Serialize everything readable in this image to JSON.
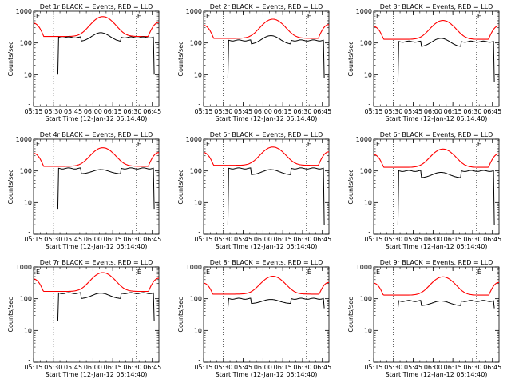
{
  "colors": {
    "events": "#000000",
    "lld": "#ff0000",
    "axis": "#000000",
    "background": "#ffffff"
  },
  "shared": {
    "xlabel": "Start Time (12-Jan-12 05:14:40)",
    "ylabel": "Counts/sec",
    "x_tick_labels": [
      "05:15",
      "05:30",
      "05:45",
      "06:00",
      "06:15",
      "06:30",
      "06:45"
    ],
    "y_tick_labels": [
      "1",
      "10",
      "100",
      "1000"
    ],
    "marker_left": "E",
    "marker_right": "E"
  },
  "chart_data": [
    {
      "type": "line",
      "title": "Det 1r BLACK = Events, RED = LLD",
      "x": [],
      "series": [
        {
          "values": []
        },
        {
          "values": []
        }
      ],
      "ylim": [
        1,
        1000
      ],
      "yscale": "log",
      "events_level": 150,
      "events_dip": 110,
      "events_hump": 210,
      "events_end": 10,
      "lld_base": 160,
      "lld_peak": 540,
      "lld_edges": 420,
      "events_start": 5.55,
      "events_stop": 6.78,
      "step_left": 5.85,
      "step_right": 6.35
    },
    {
      "type": "line",
      "title": "Det 2r BLACK = Events, RED = LLD",
      "x": [],
      "series": [
        {
          "values": []
        },
        {
          "values": []
        }
      ],
      "ylim": [
        1,
        1000
      ],
      "yscale": "log",
      "events_level": 120,
      "events_dip": 90,
      "events_hump": 170,
      "events_end": 8,
      "lld_base": 140,
      "lld_peak": 440,
      "lld_edges": 360,
      "events_start": 5.55,
      "events_stop": 6.78,
      "step_left": 5.85,
      "step_right": 6.35
    },
    {
      "type": "line",
      "title": "Det 3r BLACK = Events, RED = LLD",
      "x": [],
      "series": [
        {
          "values": []
        },
        {
          "values": []
        }
      ],
      "ylim": [
        1,
        1000
      ],
      "yscale": "log",
      "events_level": 110,
      "events_dip": 75,
      "events_hump": 140,
      "events_end": 6,
      "lld_base": 130,
      "lld_peak": 400,
      "lld_edges": 330,
      "events_start": 5.55,
      "events_stop": 6.78,
      "step_left": 5.85,
      "step_right": 6.35
    },
    {
      "type": "line",
      "title": "Det 4r BLACK = Events, RED = LLD",
      "x": [],
      "series": [
        {
          "values": []
        },
        {
          "values": []
        }
      ],
      "ylim": [
        1,
        1000
      ],
      "yscale": "log",
      "events_level": 120,
      "events_dip": 80,
      "events_hump": 110,
      "events_end": 6,
      "lld_base": 140,
      "lld_peak": 420,
      "lld_edges": 360,
      "events_start": 5.55,
      "events_stop": 6.78,
      "step_left": 5.85,
      "step_right": 6.35
    },
    {
      "type": "line",
      "title": "Det 5r BLACK = Events, RED = LLD",
      "x": [],
      "series": [
        {
          "values": []
        },
        {
          "values": []
        }
      ],
      "ylim": [
        1,
        1000
      ],
      "yscale": "log",
      "events_level": 120,
      "events_dip": 75,
      "events_hump": 110,
      "events_end": 2,
      "lld_base": 150,
      "lld_peak": 440,
      "lld_edges": 380,
      "events_start": 5.55,
      "events_stop": 6.78,
      "step_left": 5.85,
      "step_right": 6.35
    },
    {
      "type": "line",
      "title": "Det 6r BLACK = Events, RED = LLD",
      "x": [],
      "series": [
        {
          "values": []
        },
        {
          "values": []
        }
      ],
      "ylim": [
        1,
        1000
      ],
      "yscale": "log",
      "events_level": 100,
      "events_dip": 60,
      "events_hump": 90,
      "events_end": 2,
      "lld_base": 130,
      "lld_peak": 380,
      "lld_edges": 330,
      "events_start": 5.55,
      "events_stop": 6.78,
      "step_left": 5.85,
      "step_right": 6.35
    },
    {
      "type": "line",
      "title": "Det 7r BLACK = Events, RED = LLD",
      "x": [],
      "series": [
        {
          "values": []
        },
        {
          "values": []
        }
      ],
      "ylim": [
        1,
        1000
      ],
      "yscale": "log",
      "events_level": 150,
      "events_dip": 100,
      "events_hump": 150,
      "events_end": 20,
      "lld_base": 170,
      "lld_peak": 520,
      "lld_edges": 420,
      "events_start": 5.55,
      "events_stop": 6.78,
      "step_left": 5.85,
      "step_right": 6.35
    },
    {
      "type": "line",
      "title": "Det 8r BLACK = Events, RED = LLD",
      "x": [],
      "series": [
        {
          "values": []
        },
        {
          "values": []
        }
      ],
      "ylim": [
        1,
        1000
      ],
      "yscale": "log",
      "events_level": 100,
      "events_dip": 70,
      "events_hump": 95,
      "events_end": 50,
      "lld_base": 140,
      "lld_peak": 390,
      "lld_edges": 310,
      "events_start": 5.55,
      "events_stop": 6.78,
      "step_left": 5.85,
      "step_right": 6.35
    },
    {
      "type": "line",
      "title": "Det 9r BLACK = Events, RED = LLD",
      "x": [],
      "series": [
        {
          "values": []
        },
        {
          "values": []
        }
      ],
      "ylim": [
        1,
        1000
      ],
      "yscale": "log",
      "events_level": 85,
      "events_dip": 60,
      "events_hump": 85,
      "events_end": 50,
      "lld_base": 130,
      "lld_peak": 380,
      "lld_edges": 310,
      "events_start": 5.55,
      "events_stop": 6.78,
      "step_left": 5.85,
      "step_right": 6.35
    }
  ]
}
